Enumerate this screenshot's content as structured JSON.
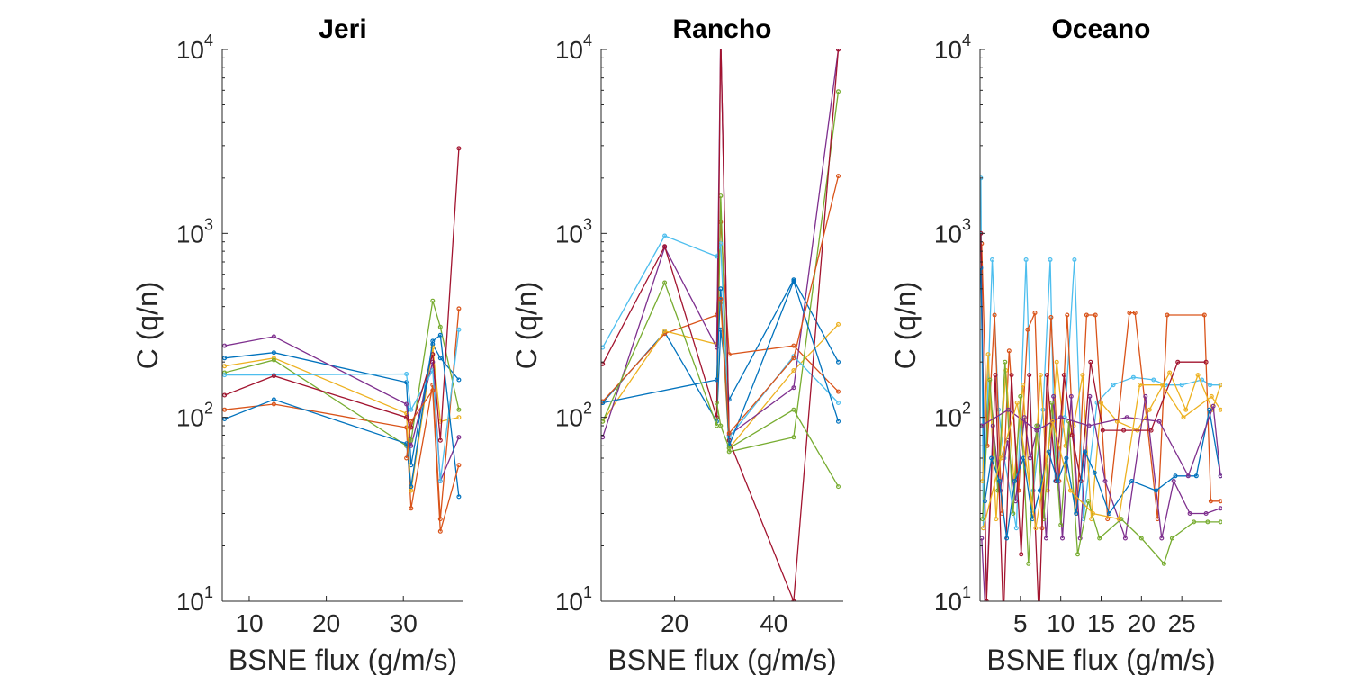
{
  "figure": {
    "panels": [
      "Jeri",
      "Rancho",
      "Oceano"
    ]
  },
  "chart_data": [
    {
      "type": "line",
      "title": "Jeri",
      "xlabel": "BSNE flux (g/m/s)",
      "ylabel": "C (q/n)",
      "yscale": "log",
      "xlim": [
        6.5,
        37.8
      ],
      "ylim": [
        10,
        10000
      ],
      "xticks": [
        10,
        20,
        30
      ],
      "yticks": [
        10,
        100,
        1000,
        10000
      ],
      "yticklabels": [
        {
          "base": "10",
          "exp": "1"
        },
        {
          "base": "10",
          "exp": "2"
        },
        {
          "base": "10",
          "exp": "3"
        },
        {
          "base": "10",
          "exp": "4"
        }
      ],
      "series": [
        {
          "color": "#0072BD",
          "x": [
            6.8,
            13.2,
            30.4,
            31.0,
            33.8,
            34.8,
            37.2
          ],
          "y": [
            210,
            225,
            155,
            55,
            250,
            210,
            160
          ]
        },
        {
          "color": "#D95319",
          "x": [
            6.8,
            13.2,
            30.4,
            31.0,
            33.8,
            34.8,
            37.2
          ],
          "y": [
            110,
            118,
            88,
            32,
            150,
            28,
            390
          ]
        },
        {
          "color": "#EDB120",
          "x": [
            6.8,
            13.2,
            30.4,
            31.0,
            33.8,
            34.8,
            37.2
          ],
          "y": [
            190,
            210,
            105,
            40,
            240,
            95,
            100
          ]
        },
        {
          "color": "#7E2F8E",
          "x": [
            6.8,
            13.2,
            30.4,
            31.0,
            33.8,
            34.8,
            37.2
          ],
          "y": [
            245,
            275,
            118,
            70,
            200,
            45,
            78
          ]
        },
        {
          "color": "#77AC30",
          "x": [
            6.8,
            13.2,
            30.4,
            31.0,
            33.8,
            34.8,
            37.2
          ],
          "y": [
            175,
            205,
            70,
            75,
            430,
            310,
            110
          ]
        },
        {
          "color": "#4DBEEE",
          "x": [
            6.8,
            13.2,
            30.4,
            31.0,
            33.8,
            34.8,
            37.2
          ],
          "y": [
            170,
            170,
            172,
            110,
            180,
            45,
            300
          ]
        },
        {
          "color": "#A2142F",
          "x": [
            6.8,
            13.2,
            30.4,
            31.0,
            33.8,
            34.8,
            37.2
          ],
          "y": [
            132,
            168,
            100,
            88,
            220,
            75,
            2900
          ]
        },
        {
          "color": "#0072BD",
          "x": [
            6.8,
            13.2,
            30.4,
            31.0,
            33.8,
            34.8,
            37.2
          ],
          "y": [
            98,
            125,
            72,
            42,
            260,
            280,
            37
          ]
        },
        {
          "color": "#D95319",
          "x": [
            30.4,
            31.0,
            33.8,
            34.8,
            37.2
          ],
          "y": [
            60,
            95,
            140,
            24,
            55
          ]
        }
      ]
    },
    {
      "type": "line",
      "title": "Rancho",
      "xlabel": "BSNE flux (g/m/s)",
      "ylabel": "C (q/n)",
      "yscale": "log",
      "xlim": [
        5.2,
        54
      ],
      "ylim": [
        10,
        10000
      ],
      "xticks": [
        20,
        40
      ],
      "yticks": [
        10,
        100,
        1000,
        10000
      ],
      "yticklabels": [
        {
          "base": "10",
          "exp": "1"
        },
        {
          "base": "10",
          "exp": "2"
        },
        {
          "base": "10",
          "exp": "3"
        },
        {
          "base": "10",
          "exp": "4"
        }
      ],
      "series": [
        {
          "color": "#0072BD",
          "x": [
            5.5,
            18.0,
            28.5,
            29.3,
            31.0,
            44.0,
            53.0
          ],
          "y": [
            120,
            290,
            95,
            300,
            125,
            560,
            200
          ]
        },
        {
          "color": "#D95319",
          "x": [
            5.5,
            18.0,
            28.5,
            29.3,
            31.0,
            44.0,
            53.0
          ],
          "y": [
            122,
            285,
            360,
            1150,
            220,
            245,
            138
          ]
        },
        {
          "color": "#EDB120",
          "x": [
            5.5,
            18.0,
            28.5,
            29.3,
            31.0,
            44.0,
            53.0
          ],
          "y": [
            95,
            295,
            250,
            420,
            68,
            180,
            320
          ]
        },
        {
          "color": "#7E2F8E",
          "x": [
            5.5,
            18.0,
            28.5,
            29.3,
            31.0,
            44.0,
            53.0
          ],
          "y": [
            78,
            840,
            240,
            12000,
            80,
            145,
            10000
          ]
        },
        {
          "color": "#77AC30",
          "x": [
            5.5,
            18.0,
            28.5,
            29.3,
            31.0,
            44.0,
            53.0
          ],
          "y": [
            95,
            540,
            90,
            1600,
            65,
            78,
            5900
          ]
        },
        {
          "color": "#4DBEEE",
          "x": [
            5.5,
            18.0,
            28.5,
            29.3,
            31.0,
            44.0,
            53.0
          ],
          "y": [
            240,
            970,
            750,
            880,
            78,
            215,
            120
          ]
        },
        {
          "color": "#A2142F",
          "x": [
            5.5,
            18.0,
            28.5,
            29.3,
            31.0,
            44.0,
            53.0
          ],
          "y": [
            195,
            850,
            100,
            12000,
            75,
            10,
            10000
          ]
        },
        {
          "color": "#0072BD",
          "x": [
            5.5,
            28.5,
            29.3,
            31.0,
            44.0,
            53.0
          ],
          "y": [
            120,
            160,
            500,
            70,
            550,
            95
          ]
        },
        {
          "color": "#77AC30",
          "x": [
            28.5,
            29.3,
            31.0,
            44.0,
            53.0
          ],
          "y": [
            120,
            90,
            68,
            110,
            42
          ]
        },
        {
          "color": "#D95319",
          "x": [
            29.3,
            31.0,
            44.0,
            53.0
          ],
          "y": [
            440,
            82,
            210,
            2050
          ]
        }
      ]
    },
    {
      "type": "line",
      "title": "Oceano",
      "xlabel": "BSNE flux (g/m/s)",
      "ylabel": "C (q/n)",
      "yscale": "log",
      "xlim": [
        0,
        30
      ],
      "ylim": [
        10,
        10000
      ],
      "xticks": [
        5,
        10,
        15,
        20,
        25
      ],
      "yticks": [
        10,
        100,
        1000,
        10000
      ],
      "yticklabels": [
        {
          "base": "10",
          "exp": "1"
        },
        {
          "base": "10",
          "exp": "2"
        },
        {
          "base": "10",
          "exp": "3"
        },
        {
          "base": "10",
          "exp": "4"
        }
      ],
      "series": [
        {
          "color": "#4DBEEE",
          "x": [
            0.1,
            0.4,
            1.5,
            2.3,
            3.0,
            4.5,
            5.7,
            6.6,
            7.8,
            8.7,
            9.3,
            10.5,
            11.7,
            12.8,
            14.5,
            16.5,
            19.0,
            21.5,
            23.0,
            25.0,
            27.5,
            28.5,
            29.8
          ],
          "y": [
            2000,
            25,
            720,
            110,
            60,
            25,
            720,
            40,
            110,
            720,
            45,
            100,
            720,
            28,
            120,
            150,
            165,
            160,
            150,
            150,
            160,
            150,
            150
          ]
        },
        {
          "color": "#D95319",
          "x": [
            0.2,
            0.9,
            1.8,
            2.7,
            3.6,
            4.8,
            5.9,
            6.8,
            7.7,
            8.8,
            9.8,
            10.8,
            12.0,
            13.2,
            14.3,
            15.8,
            18.5,
            19.2,
            22.0,
            23.2,
            27.8,
            28.6,
            29.8
          ],
          "y": [
            880,
            70,
            360,
            30,
            230,
            40,
            300,
            370,
            25,
            350,
            45,
            360,
            30,
            360,
            360,
            28,
            370,
            370,
            28,
            360,
            360,
            35,
            35
          ]
        },
        {
          "color": "#EDB120",
          "x": [
            0.3,
            1.0,
            2.0,
            3.2,
            4.2,
            5.3,
            6.4,
            7.5,
            8.4,
            9.5,
            10.6,
            11.6,
            12.7,
            13.8,
            15.0,
            17.0,
            19.5,
            21.0,
            23.5,
            25.5,
            27.0,
            28.8,
            29.8
          ],
          "y": [
            45,
            220,
            28,
            180,
            45,
            150,
            30,
            170,
            40,
            200,
            70,
            90,
            170,
            28,
            120,
            95,
            85,
            110,
            175,
            110,
            170,
            110,
            150
          ]
        },
        {
          "color": "#7E2F8E",
          "x": [
            0.2,
            0.7,
            1.6,
            2.5,
            3.4,
            4.4,
            5.5,
            6.2,
            7.2,
            8.2,
            9.1,
            10.2,
            11.3,
            12.4,
            13.6,
            15.5,
            18.0,
            20.5,
            22.5,
            24.0,
            26.0,
            28.0,
            29.8
          ],
          "y": [
            22,
            8,
            90,
            40,
            75,
            35,
            100,
            60,
            90,
            22,
            130,
            22,
            130,
            22,
            130,
            45,
            22,
            130,
            22,
            45,
            30,
            30,
            32
          ]
        },
        {
          "color": "#77AC30",
          "x": [
            0.3,
            1.2,
            2.2,
            3.1,
            4.1,
            5.0,
            6.0,
            7.0,
            7.9,
            8.9,
            10.0,
            11.0,
            12.1,
            13.4,
            14.8,
            17.5,
            20.0,
            22.8,
            23.8,
            26.5,
            28.2,
            29.8
          ],
          "y": [
            28,
            160,
            40,
            200,
            30,
            130,
            16,
            90,
            28,
            120,
            26,
            95,
            18,
            35,
            22,
            28,
            22,
            16,
            22,
            27,
            27,
            27
          ]
        },
        {
          "color": "#A2142F",
          "x": [
            0.1,
            0.8,
            1.9,
            2.9,
            3.9,
            5.1,
            6.1,
            7.3,
            8.3,
            9.4,
            10.4,
            11.4,
            12.5,
            13.7,
            15.2,
            17.8,
            21.2,
            24.5,
            28.0
          ],
          "y": [
            1000,
            10,
            170,
            8,
            170,
            18,
            170,
            8,
            170,
            45,
            170,
            80,
            45,
            200,
            85,
            85,
            85,
            200,
            200
          ]
        },
        {
          "color": "#0072BD",
          "x": [
            0.1,
            0.6,
            1.4,
            2.4,
            3.3,
            4.3,
            5.4,
            6.5,
            7.4,
            8.5,
            9.6,
            10.7,
            11.9,
            13.0,
            14.2,
            16.0,
            18.8,
            21.8,
            24.2,
            26.8,
            28.4,
            29.8
          ],
          "y": [
            650,
            35,
            60,
            45,
            22,
            45,
            60,
            28,
            40,
            65,
            45,
            60,
            30,
            65,
            50,
            30,
            45,
            40,
            48,
            48,
            110,
            48
          ]
        },
        {
          "color": "#7E2F8E",
          "x": [
            0.2,
            3.5,
            7.0,
            10.0,
            13.5,
            18.2,
            22.2,
            25.8,
            28.9,
            29.8
          ],
          "y": [
            90,
            110,
            85,
            100,
            90,
            100,
            95,
            48,
            115,
            48
          ]
        },
        {
          "color": "#EDB120",
          "x": [
            0.4,
            2.6,
            4.6,
            6.9,
            9.0,
            11.2,
            14.0,
            17.2,
            19.8,
            22.6,
            25.2,
            28.7,
            29.8
          ],
          "y": [
            25,
            60,
            120,
            25,
            95,
            40,
            30,
            28,
            150,
            150,
            100,
            130,
            110
          ]
        }
      ]
    }
  ]
}
